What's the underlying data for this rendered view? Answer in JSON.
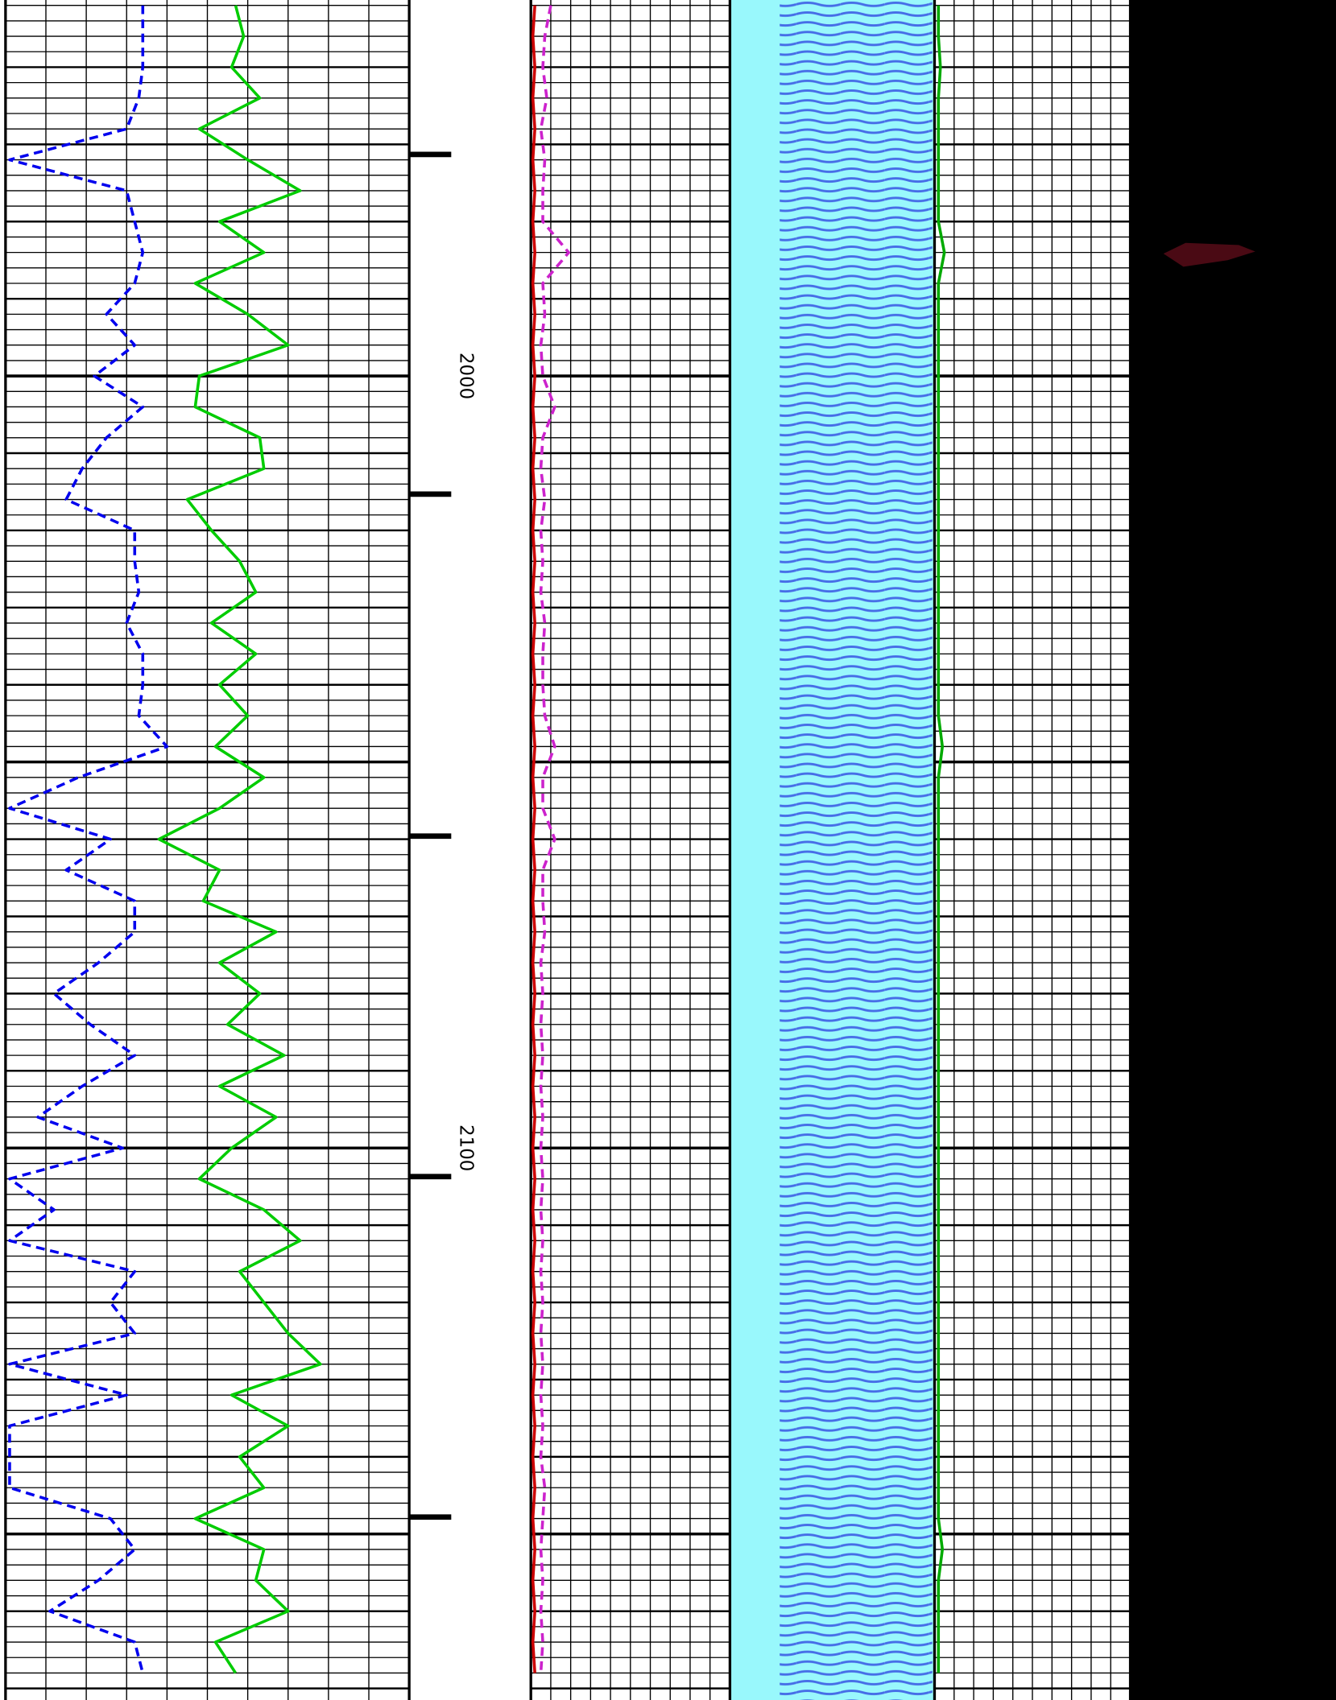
{
  "chart_data": {
    "type": "well-log",
    "ylim": [
      1951.3,
      2171.5
    ],
    "yticks": [
      2000,
      2100
    ],
    "depth_marks": [
      1971.3,
      2015.3,
      2059.6,
      2103.7,
      2147.8
    ],
    "xlim": [
      0,
      100
    ],
    "grid": true,
    "x": [
      1952,
      1956,
      1960,
      1964,
      1968,
      1972,
      1976,
      1980,
      1984,
      1988,
      1992,
      1996,
      2000,
      2004,
      2008,
      2012,
      2016,
      2020,
      2024,
      2028,
      2032,
      2036,
      2040,
      2044,
      2048,
      2052,
      2056,
      2060,
      2064,
      2068,
      2072,
      2076,
      2080,
      2084,
      2088,
      2092,
      2096,
      2100,
      2104,
      2108,
      2112,
      2116,
      2120,
      2124,
      2128,
      2132,
      2136,
      2140,
      2144,
      2148,
      2152,
      2156,
      2160,
      2164,
      2168
    ],
    "series": [
      {
        "color": "#0000ee",
        "track": 1,
        "dashed": true,
        "values": [
          34,
          34,
          34,
          33,
          30,
          1,
          30,
          32,
          34,
          32,
          25,
          32,
          22,
          34,
          25,
          19,
          15,
          32,
          32,
          33,
          30,
          34,
          34,
          33,
          40,
          18,
          1,
          26,
          15,
          32,
          32,
          23,
          12,
          21,
          32,
          19,
          8,
          29,
          1,
          12,
          1,
          32,
          26,
          32,
          1,
          30,
          1,
          1,
          1,
          26,
          32,
          23,
          11,
          32,
          34
        ]
      },
      {
        "color": "#00cc00",
        "track": 1,
        "dashed": false,
        "values": [
          57,
          59,
          56,
          63,
          48,
          60,
          73,
          53,
          64,
          47,
          60,
          70,
          48,
          47,
          63,
          64,
          45,
          51,
          58,
          62,
          51,
          62,
          53,
          60,
          52,
          64,
          53,
          38,
          53,
          49,
          67,
          53,
          63,
          55,
          69,
          53,
          67,
          56,
          48,
          64,
          73,
          58,
          64,
          70,
          78,
          56,
          70,
          58,
          64,
          47,
          64,
          62,
          70,
          52,
          57
        ]
      },
      {
        "color": "#cc0000",
        "track": 2,
        "dashed": false,
        "values": [
          2,
          1,
          2,
          1,
          2,
          1,
          2,
          1,
          2,
          1,
          2,
          1,
          2,
          1,
          2,
          1,
          2,
          1,
          2,
          1,
          2,
          1,
          2,
          1,
          2,
          1,
          2,
          1,
          2,
          1,
          2,
          1,
          2,
          1,
          2,
          1,
          2,
          1,
          2,
          1,
          2,
          1,
          2,
          1,
          2,
          1,
          2,
          1,
          2,
          1,
          2,
          1,
          2,
          1,
          2
        ]
      },
      {
        "color": "#cc22cc",
        "track": 2,
        "dashed": true,
        "values": [
          10,
          7,
          6,
          8,
          5,
          7,
          6,
          6,
          19,
          6,
          7,
          5,
          6,
          12,
          6,
          5,
          7,
          5,
          6,
          5,
          7,
          6,
          6,
          7,
          12,
          6,
          6,
          12,
          6,
          6,
          7,
          5,
          6,
          5,
          6,
          5,
          6,
          5,
          6,
          5,
          6,
          5,
          6,
          5,
          6,
          5,
          6,
          5,
          7,
          6,
          5,
          6,
          5,
          6,
          5
        ]
      },
      {
        "color": "#00aa00",
        "track": 3,
        "dashed": false,
        "values": [
          2,
          2,
          3,
          2,
          2,
          2,
          2,
          2,
          5,
          2,
          2,
          2,
          2,
          2,
          2,
          2,
          2,
          2,
          2,
          2,
          2,
          2,
          2,
          2,
          4,
          2,
          2,
          2,
          2,
          2,
          2,
          2,
          2,
          2,
          2,
          2,
          2,
          2,
          2,
          2,
          2,
          2,
          2,
          2,
          2,
          2,
          2,
          2,
          2,
          2,
          4,
          2,
          2,
          2,
          2
        ]
      }
    ]
  }
}
